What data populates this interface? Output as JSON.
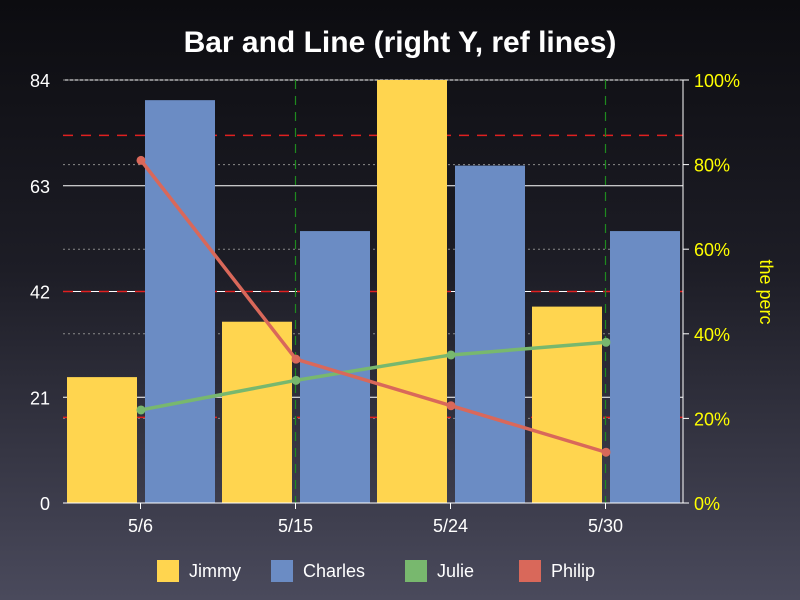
{
  "chart_data": {
    "type": "bar",
    "title": "Bar and Line (right Y, ref lines)",
    "categories": [
      "5/6",
      "5/15",
      "5/24",
      "5/30"
    ],
    "left_axis": {
      "min": 0,
      "max": 84,
      "ticks": [
        "0",
        "21",
        "42",
        "63",
        "84"
      ]
    },
    "right_axis": {
      "label": "the perc",
      "min": 0,
      "max": 100,
      "ticks": [
        "0%",
        "20%",
        "40%",
        "60%",
        "80%",
        "100%"
      ]
    },
    "bar_series": [
      {
        "name": "Jimmy",
        "color": "#ffd54f",
        "values": [
          25,
          36,
          86,
          39
        ]
      },
      {
        "name": "Charles",
        "color": "#6b8cc4",
        "values": [
          80,
          54,
          67,
          54
        ]
      }
    ],
    "line_series": [
      {
        "name": "Julie",
        "color": "#78b86e",
        "axis": "right",
        "values": [
          22,
          29,
          35,
          38
        ]
      },
      {
        "name": "Philip",
        "color": "#d9685a",
        "axis": "right",
        "values": [
          81,
          34,
          23,
          12
        ]
      }
    ],
    "reference_lines": {
      "horizontal": [
        {
          "value": 73,
          "axis": "left",
          "color": "#e02020",
          "style": "dashed"
        },
        {
          "value": 42,
          "axis": "left",
          "color": "#e02020",
          "style": "dashed"
        },
        {
          "value": 17,
          "axis": "left",
          "color": "#e02020",
          "style": "dashed"
        }
      ],
      "vertical_at_categories": [
        "5/15",
        "5/30"
      ],
      "vertical_color": "#1f8a1f"
    },
    "grid": true,
    "legend_position": "bottom"
  }
}
